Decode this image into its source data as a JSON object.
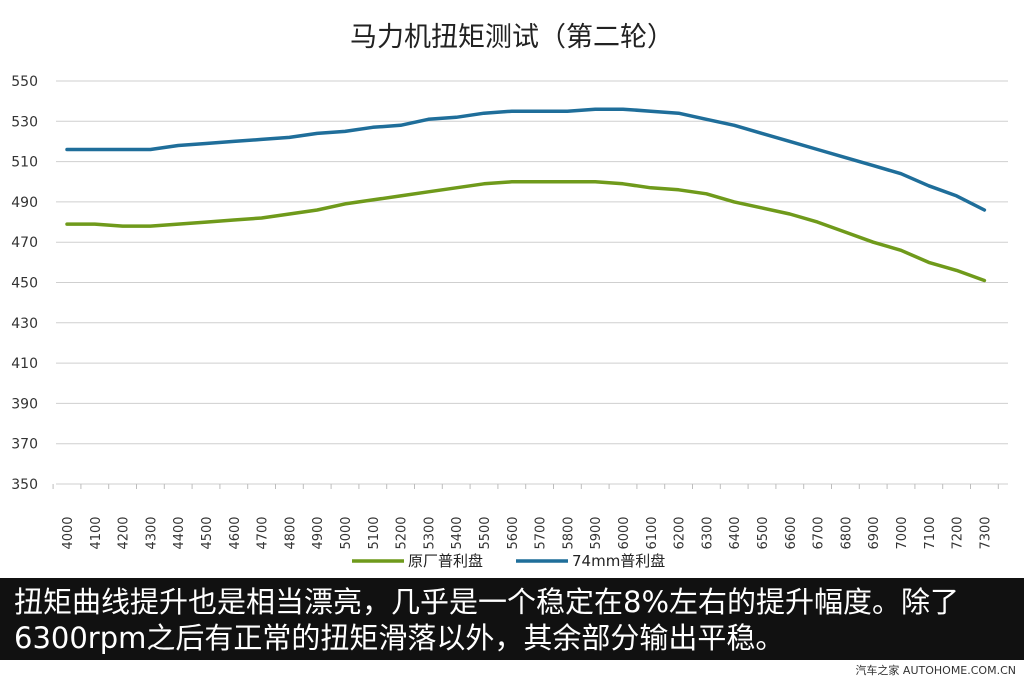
{
  "chart_data": {
    "type": "line",
    "title": "马力机扭矩测试（第二轮）",
    "xlabel": "",
    "ylabel": "",
    "categories": [
      "4000",
      "4100",
      "4200",
      "4300",
      "4400",
      "4500",
      "4600",
      "4700",
      "4800",
      "4900",
      "5000",
      "5100",
      "5200",
      "5300",
      "5400",
      "5500",
      "5600",
      "5700",
      "5800",
      "5900",
      "6000",
      "6100",
      "6200",
      "6300",
      "6400",
      "6500",
      "6600",
      "6700",
      "6800",
      "6900",
      "7000",
      "7100",
      "7200",
      "7300"
    ],
    "ylim": [
      350,
      550
    ],
    "yticks": [
      350,
      370,
      390,
      410,
      430,
      450,
      470,
      490,
      510,
      530,
      550
    ],
    "grid": true,
    "legend_position": "bottom",
    "series": [
      {
        "name": "原厂普利盘",
        "color": "#6f9a1b",
        "values": [
          479,
          479,
          478,
          478,
          479,
          480,
          481,
          482,
          484,
          486,
          489,
          491,
          493,
          495,
          497,
          499,
          500,
          500,
          500,
          500,
          499,
          497,
          496,
          494,
          490,
          487,
          484,
          480,
          475,
          470,
          466,
          460,
          456,
          451
        ]
      },
      {
        "name": "74mm普利盘",
        "color": "#1f6e9a",
        "values": [
          516,
          516,
          516,
          516,
          518,
          519,
          520,
          521,
          522,
          524,
          525,
          527,
          528,
          531,
          532,
          534,
          535,
          535,
          535,
          536,
          536,
          535,
          534,
          531,
          528,
          524,
          520,
          516,
          512,
          508,
          504,
          498,
          493,
          486
        ]
      }
    ]
  },
  "caption": {
    "text": "扭矩曲线提升也是相当漂亮，几乎是一个稳定在8%左右的提升幅度。除了6300rpm之后有正常的扭矩滑落以外，其余部分输出平稳。"
  },
  "watermark": {
    "text": "汽车之家 AUTOHOME.COM.CN"
  }
}
